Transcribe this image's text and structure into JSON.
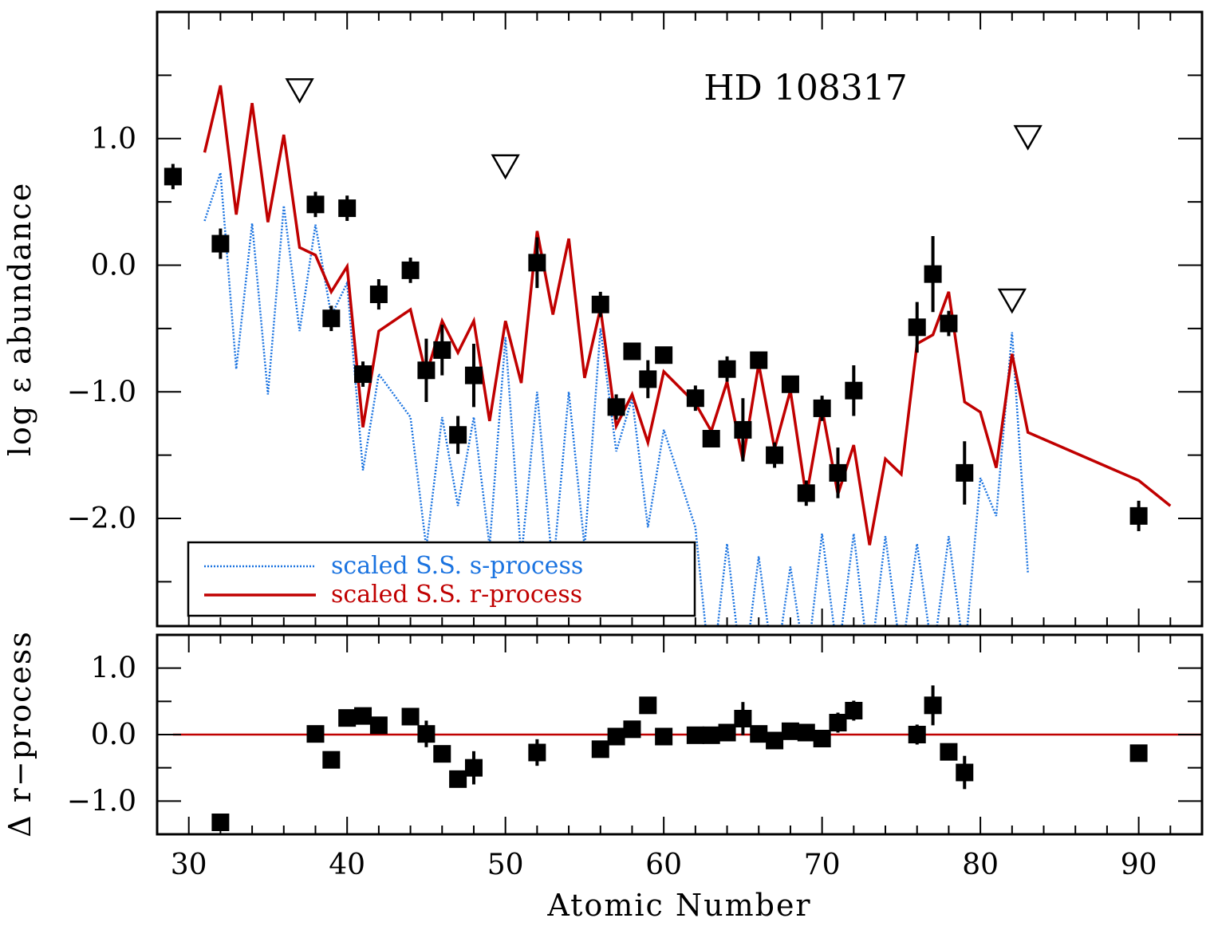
{
  "chart_data": [
    {
      "type": "scatter",
      "panel": "top",
      "title": "HD 108317",
      "xlabel": "Atomic Number",
      "ylabel": "log ε abundance",
      "xlim": [
        28,
        94
      ],
      "ylim": [
        -2.85,
        2.0
      ],
      "xticks": [
        30,
        40,
        50,
        60,
        70,
        80,
        90
      ],
      "yticks": [
        -2.0,
        -1.0,
        0.0,
        1.0
      ],
      "ytick_labels": [
        "−2.0",
        "−1.0",
        "0.0",
        "1.0"
      ],
      "grid": false,
      "legend_position": "bottom-left",
      "observed": {
        "x": [
          29,
          32,
          38,
          39,
          40,
          41,
          42,
          44,
          45,
          46,
          47,
          48,
          52,
          56,
          57,
          58,
          59,
          60,
          62,
          63,
          64,
          65,
          66,
          67,
          68,
          69,
          70,
          71,
          72,
          76,
          77,
          78,
          79,
          90
        ],
        "y": [
          0.7,
          0.17,
          0.48,
          -0.42,
          0.45,
          -0.86,
          -0.23,
          -0.04,
          -0.83,
          -0.67,
          -1.34,
          -0.87,
          0.02,
          -0.31,
          -1.12,
          -0.68,
          -0.9,
          -0.71,
          -1.05,
          -1.37,
          -0.82,
          -1.3,
          -0.75,
          -1.5,
          -0.94,
          -1.8,
          -1.13,
          -1.64,
          -0.99,
          -0.49,
          -0.07,
          -0.46,
          -1.64,
          -1.98
        ],
        "err": [
          0.1,
          0.12,
          0.1,
          0.1,
          0.1,
          0.1,
          0.12,
          0.1,
          0.25,
          0.2,
          0.15,
          0.25,
          0.2,
          0.1,
          0.1,
          0.05,
          0.15,
          0.05,
          0.1,
          0.05,
          0.1,
          0.25,
          0.05,
          0.1,
          0.05,
          0.1,
          0.1,
          0.2,
          0.2,
          0.2,
          0.3,
          0.1,
          0.25,
          0.12
        ]
      },
      "upper_limits": {
        "x": [
          37,
          50,
          82,
          83
        ],
        "y": [
          1.38,
          0.78,
          -0.28,
          1.01
        ]
      },
      "series": [
        {
          "name": "scaled S.S. r-process",
          "color": "#c00000",
          "x": [
            31,
            32,
            33,
            34,
            35,
            36,
            37,
            38,
            39,
            40,
            41,
            42,
            44,
            45,
            46,
            47,
            48,
            49,
            50,
            51,
            52,
            53,
            54,
            55,
            56,
            57,
            58,
            59,
            60,
            62,
            63,
            64,
            65,
            66,
            67,
            68,
            69,
            70,
            71,
            72,
            73,
            74,
            75,
            76,
            77,
            78,
            79,
            80,
            81,
            82,
            83,
            90,
            92
          ],
          "y": [
            0.89,
            1.42,
            0.4,
            1.28,
            0.34,
            1.03,
            0.14,
            0.08,
            -0.21,
            -0.01,
            -1.28,
            -0.52,
            -0.35,
            -0.87,
            -0.44,
            -0.69,
            -0.44,
            -1.23,
            -0.44,
            -0.93,
            0.27,
            -0.39,
            0.21,
            -0.89,
            -0.34,
            -1.27,
            -1.02,
            -1.4,
            -0.84,
            -1.09,
            -1.31,
            -0.92,
            -1.54,
            -0.78,
            -1.45,
            -0.99,
            -1.83,
            -1.13,
            -1.81,
            -1.42,
            -2.21,
            -1.53,
            -1.65,
            -0.62,
            -0.55,
            -0.21,
            -1.08,
            -1.16,
            -1.6,
            -0.7,
            -1.32,
            -1.7,
            -1.9
          ]
        },
        {
          "name": "scaled S.S. s-process",
          "color": "#1a73e0",
          "x": [
            31,
            32,
            33,
            34,
            35,
            36,
            37,
            38,
            39,
            40,
            41,
            42,
            44,
            45,
            46,
            47,
            48,
            49,
            50,
            51,
            52,
            53,
            54,
            55,
            56,
            57,
            58,
            59,
            60,
            62,
            63,
            64,
            65,
            66,
            67,
            68,
            69,
            70,
            71,
            72,
            73,
            74,
            75,
            76,
            77,
            78,
            79,
            80,
            81,
            82,
            83
          ],
          "y": [
            0.35,
            0.73,
            -0.82,
            0.33,
            -1.02,
            0.47,
            -0.52,
            0.32,
            -0.4,
            -0.14,
            -1.62,
            -0.86,
            -1.2,
            -2.23,
            -1.2,
            -1.9,
            -1.2,
            -2.22,
            -0.57,
            -2.32,
            -1.0,
            -2.42,
            -1.0,
            -2.23,
            -0.5,
            -1.47,
            -1.05,
            -2.07,
            -1.3,
            -2.07,
            -3.3,
            -2.2,
            -3.3,
            -2.3,
            -3.25,
            -2.38,
            -3.2,
            -2.12,
            -3.1,
            -2.12,
            -3.2,
            -2.14,
            -3.1,
            -2.2,
            -3.1,
            -2.14,
            -3.1,
            -1.68,
            -1.98,
            -0.53,
            -2.43
          ]
        }
      ]
    },
    {
      "type": "scatter",
      "panel": "bottom",
      "xlabel": "Atomic Number",
      "ylabel": "Δ r−process",
      "xlim": [
        28,
        94
      ],
      "ylim": [
        -1.5,
        1.5
      ],
      "xticks": [
        30,
        40,
        50,
        60,
        70,
        80,
        90
      ],
      "xtick_labels": [
        "30",
        "40",
        "50",
        "60",
        "70",
        "80",
        "90"
      ],
      "yticks": [
        -1.0,
        0.0,
        1.0
      ],
      "ytick_labels": [
        "−1.0",
        "0.0",
        "1.0"
      ],
      "reference_line": {
        "y": 0.0,
        "color": "#c00000"
      },
      "residuals": {
        "x": [
          32,
          38,
          39,
          40,
          41,
          42,
          44,
          45,
          46,
          47,
          48,
          52,
          56,
          57,
          58,
          59,
          60,
          62,
          63,
          64,
          65,
          66,
          67,
          68,
          69,
          70,
          71,
          72,
          76,
          77,
          78,
          79,
          90
        ],
        "y": [
          -1.32,
          0.01,
          -0.38,
          0.25,
          0.28,
          0.14,
          0.27,
          0.01,
          -0.29,
          -0.67,
          -0.5,
          -0.27,
          -0.22,
          -0.03,
          0.08,
          0.44,
          -0.03,
          -0.01,
          -0.01,
          0.03,
          0.24,
          0.01,
          -0.09,
          0.05,
          0.03,
          -0.06,
          0.18,
          0.36,
          0.0,
          0.44,
          -0.26,
          -0.57,
          -0.28
        ],
        "err": [
          0.1,
          0.1,
          0.1,
          0.1,
          0.1,
          0.1,
          0.1,
          0.2,
          0.1,
          0.12,
          0.25,
          0.2,
          0.1,
          0.1,
          0.05,
          0.1,
          0.05,
          0.05,
          0.05,
          0.05,
          0.25,
          0.05,
          0.05,
          0.05,
          0.05,
          0.05,
          0.15,
          0.15,
          0.15,
          0.3,
          0.1,
          0.25,
          0.1
        ]
      }
    }
  ]
}
